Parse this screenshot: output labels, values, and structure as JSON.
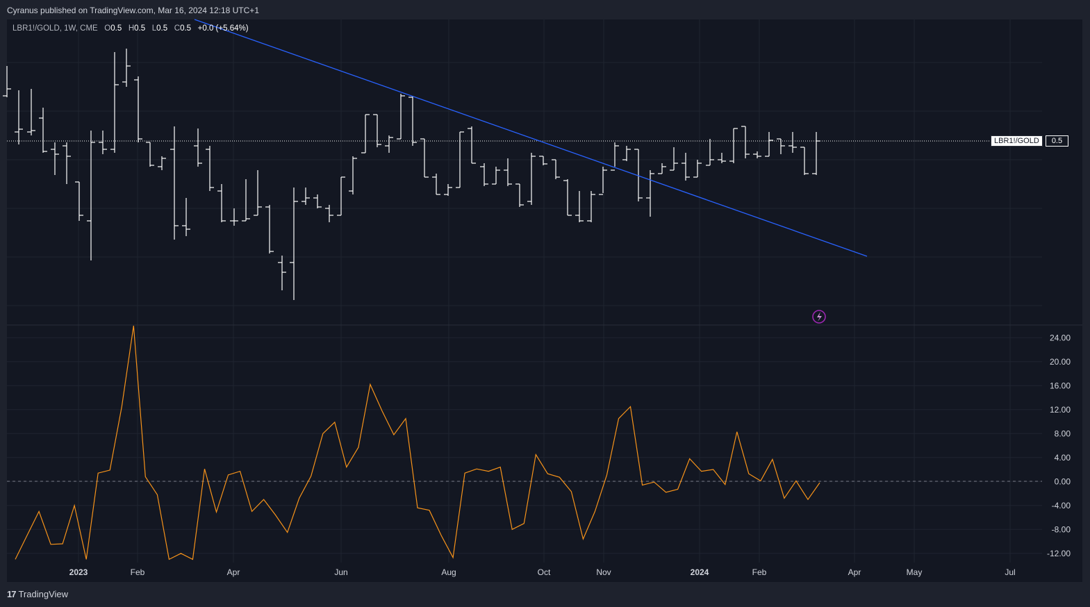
{
  "header": {
    "publish_text": "Cyranus published on TradingView.com, Mar 16, 2024 12:18 UTC+1"
  },
  "legend": {
    "symbol": "LBR1!/GOLD, 1W, CME",
    "open_label": "O",
    "open": "0.5",
    "high_label": "H",
    "high": "0.5",
    "low_label": "L",
    "low": "0.5",
    "close_label": "C",
    "close": "0.5",
    "change": "+0.0 (+5.64%)"
  },
  "price_label": {
    "name": "LBR1!/GOLD",
    "value": "0.5"
  },
  "footer": {
    "brand": "TradingView",
    "brand_mark": "17"
  },
  "colors": {
    "background": "#131722",
    "bars": "#ffffff",
    "trendline": "#2962ff",
    "oscillator": "#f7931a",
    "grid": "#1f2430",
    "axis_text": "#d1d4dc"
  },
  "chart_data": [
    {
      "type": "ohlc",
      "symbol": "LBR1!/GOLD",
      "interval": "1W",
      "x_tick_labels": [
        "2023",
        "Feb",
        "Apr",
        "Jun",
        "Aug",
        "Oct",
        "Nov",
        "2024",
        "Feb",
        "Apr",
        "May",
        "Jul"
      ],
      "current_value": 0.5,
      "trendline": "descending",
      "icon": "lightning-icon"
    },
    {
      "type": "line",
      "y_ticks": [
        24,
        20,
        16,
        12,
        8,
        4,
        0,
        -4,
        -8,
        -12
      ],
      "y_tick_labels": [
        "24.00",
        "20.00",
        "16.00",
        "12.00",
        "8.00",
        "4.00",
        "0.00",
        "-4.00",
        "-8.00",
        "-12.00"
      ],
      "ylim": [
        -13.3,
        26
      ],
      "zero_line": "dashed",
      "values": [
        -13,
        -9,
        -5,
        -10.5,
        -10.4,
        -4,
        -13,
        1.4,
        1.9,
        12.5,
        26.2,
        0.8,
        -2.2,
        -13,
        -12,
        -13,
        2.1,
        -5.1,
        1.1,
        1.7,
        -5,
        -3,
        -5.6,
        -8.5,
        -2.8,
        0.9,
        8,
        9.9,
        2.4,
        5.7,
        16.2,
        11.8,
        7.8,
        10.5,
        -4.4,
        -4.8,
        -9,
        -12.7,
        1.4,
        2.1,
        1.7,
        2.4,
        -8,
        -7,
        4.5,
        1.3,
        0.7,
        -1.7,
        -9.6,
        -5,
        1.1,
        10.5,
        12.5,
        -0.6,
        -0.1,
        -1.8,
        -1.3,
        3.8,
        1.7,
        2,
        -0.5,
        8.3,
        1.3,
        0.1,
        3.7,
        -2.8,
        0.1,
        -3,
        -0.2
      ]
    }
  ]
}
